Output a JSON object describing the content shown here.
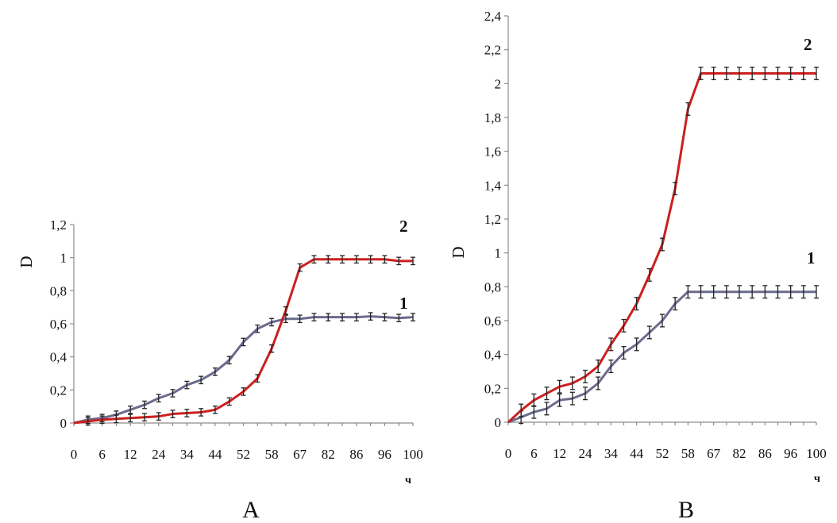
{
  "chart_data": [
    {
      "type": "line",
      "panel_label": "A",
      "ylabel": "D",
      "xlabel": "ч",
      "ylim": [
        0,
        1.2
      ],
      "yticks": [
        "0",
        "0,2",
        "0,4",
        "0,6",
        "0,8",
        "1",
        "1,2"
      ],
      "yticks_values": [
        0,
        0.2,
        0.4,
        0.6,
        0.8,
        1.0,
        1.2
      ],
      "x_tick_labels": [
        "0",
        "6",
        "12",
        "24",
        "34",
        "44",
        "52",
        "58",
        "67",
        "82",
        "86",
        "96",
        "100"
      ],
      "grid": false,
      "series": [
        {
          "name": "1",
          "color": "#6b6b8e",
          "values": [
            0.0,
            0.02,
            0.03,
            0.05,
            0.08,
            0.11,
            0.15,
            0.18,
            0.23,
            0.26,
            0.31,
            0.38,
            0.49,
            0.57,
            0.61,
            0.63,
            0.63,
            0.64,
            0.64,
            0.64,
            0.64,
            0.645,
            0.64,
            0.635,
            0.64
          ]
        },
        {
          "name": "2",
          "color": "#cc1f1f",
          "values": [
            0.0,
            0.01,
            0.02,
            0.025,
            0.03,
            0.035,
            0.04,
            0.055,
            0.06,
            0.065,
            0.08,
            0.13,
            0.19,
            0.27,
            0.45,
            0.68,
            0.94,
            0.99,
            0.99,
            0.99,
            0.99,
            0.99,
            0.99,
            0.98,
            0.98
          ]
        }
      ]
    },
    {
      "type": "line",
      "panel_label": "B",
      "ylabel": "D",
      "xlabel": "ч",
      "ylim": [
        0,
        2.4
      ],
      "yticks": [
        "0",
        "0,2",
        "0,4",
        "0,6",
        "0,8",
        "1",
        "1,2",
        "1,4",
        "1,6",
        "1,8",
        "2",
        "2,2",
        "2,4"
      ],
      "yticks_values": [
        0,
        0.2,
        0.4,
        0.6,
        0.8,
        1.0,
        1.2,
        1.4,
        1.6,
        1.8,
        2.0,
        2.2,
        2.4
      ],
      "x_tick_labels": [
        "0",
        "6",
        "12",
        "24",
        "34",
        "44",
        "52",
        "58",
        "67",
        "82",
        "86",
        "96",
        "100"
      ],
      "grid": false,
      "series": [
        {
          "name": "1",
          "color": "#6b6b8e",
          "values": [
            0.0,
            0.03,
            0.06,
            0.08,
            0.13,
            0.14,
            0.17,
            0.23,
            0.33,
            0.41,
            0.46,
            0.53,
            0.6,
            0.7,
            0.77,
            0.77,
            0.77,
            0.77,
            0.77,
            0.77,
            0.77,
            0.77,
            0.77,
            0.77,
            0.77
          ]
        },
        {
          "name": "2",
          "color": "#cc1f1f",
          "values": [
            0.0,
            0.07,
            0.13,
            0.17,
            0.21,
            0.23,
            0.27,
            0.33,
            0.46,
            0.57,
            0.7,
            0.87,
            1.05,
            1.38,
            1.85,
            2.06,
            2.06,
            2.06,
            2.06,
            2.06,
            2.06,
            2.06,
            2.06,
            2.06,
            2.06
          ]
        }
      ]
    }
  ]
}
